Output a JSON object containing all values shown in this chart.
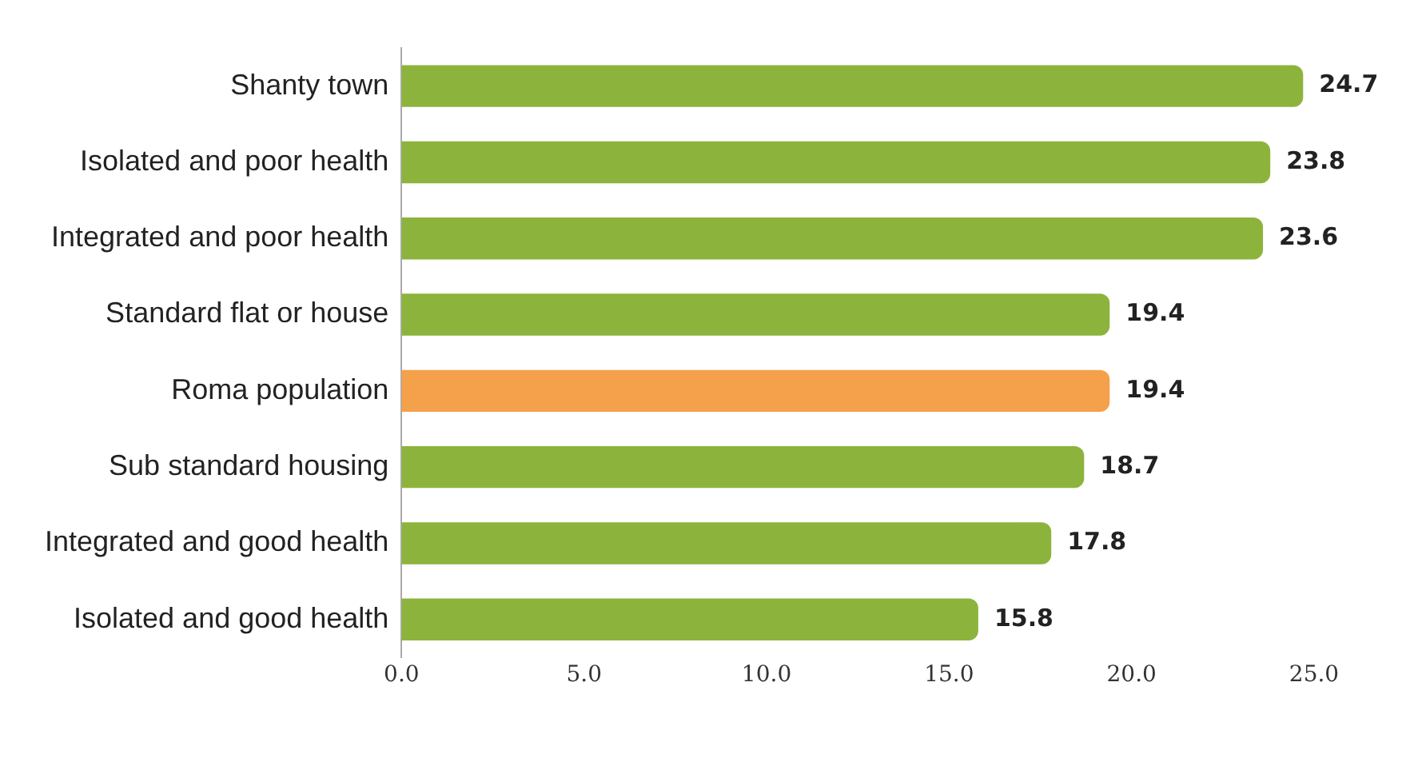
{
  "chart_data": {
    "type": "bar",
    "orientation": "horizontal",
    "categories": [
      "Shanty town",
      "Isolated and poor health",
      "Integrated and poor health",
      "Standard flat or house",
      "Roma population",
      "Sub standard housing",
      "Integrated and good health",
      "Isolated and good health"
    ],
    "values": [
      24.7,
      23.8,
      23.6,
      19.4,
      19.4,
      18.7,
      17.8,
      15.8
    ],
    "colors": [
      "#8cb43c",
      "#8cb43c",
      "#8cb43c",
      "#8cb43c",
      "#f5a04a",
      "#8cb43c",
      "#8cb43c",
      "#8cb43c"
    ],
    "xlim": [
      0,
      25
    ],
    "xticks": [
      {
        "value": 0,
        "label": "0.0"
      },
      {
        "value": 5,
        "label": "5.0"
      },
      {
        "value": 10,
        "label": "10.0"
      },
      {
        "value": 15,
        "label": "15.0"
      },
      {
        "value": 20,
        "label": "20.0"
      },
      {
        "value": 25,
        "label": "25.0"
      }
    ],
    "data_labels": true,
    "grid": false,
    "legend": false
  }
}
